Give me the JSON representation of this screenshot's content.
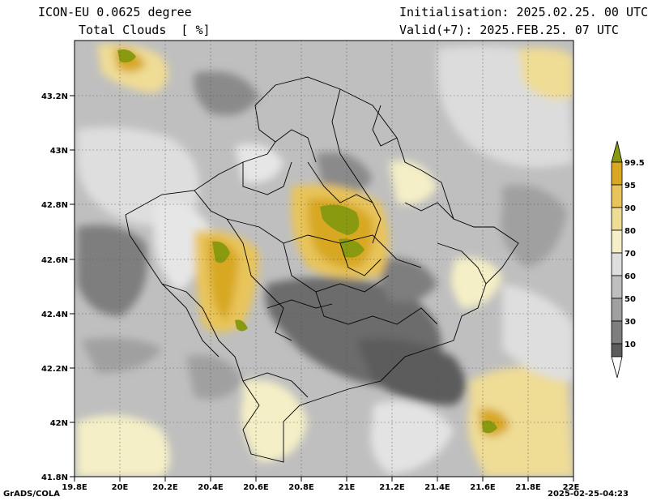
{
  "header": {
    "model": "ICON-EU 0.0625 degree",
    "variable": "Total Clouds  [ %]",
    "init": "Initialisation: 2025.02.25. 00 UTC",
    "valid": "Valid(+7): 2025.FEB.25. 07 UTC"
  },
  "axes": {
    "x_ticks": [
      "19.8E",
      "20E",
      "20.2E",
      "20.4E",
      "20.6E",
      "20.8E",
      "21E",
      "21.2E",
      "21.4E",
      "21.6E",
      "21.8E",
      "22E"
    ],
    "y_ticks": [
      "43.2N",
      "43N",
      "42.8N",
      "42.6N",
      "42.4N",
      "42.2N",
      "42N",
      "41.8N"
    ],
    "lon_range": [
      19.8,
      22.0
    ],
    "lat_range": [
      41.8,
      43.4
    ]
  },
  "colorbar": {
    "labels": [
      "99.5",
      "95",
      "90",
      "80",
      "70",
      "60",
      "50",
      "30",
      "10"
    ],
    "colors": [
      "#8a9a10",
      "#d8a823",
      "#e8c45a",
      "#efdc95",
      "#f4efc6",
      "#dedede",
      "#bfbfbf",
      "#a0a0a0",
      "#7e7e7e",
      "#5c5c5c",
      "#ffffff"
    ]
  },
  "footer": {
    "left": "GrADS/COLA",
    "right": "2025-02-25-04:23"
  }
}
